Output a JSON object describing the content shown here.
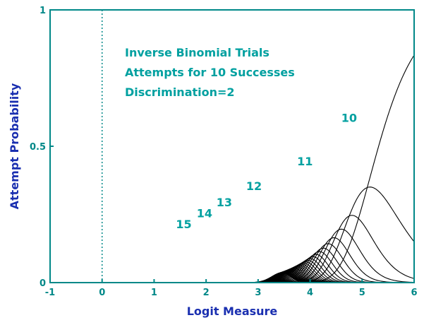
{
  "chart_data": {
    "type": "line",
    "title": "",
    "annotation_lines": [
      "Inverse Binomial Trials",
      "Attempts for 10 Successes",
      "Discrimination=2"
    ],
    "xlabel": "Logit Measure",
    "ylabel": "Attempt Probability",
    "xlim": [
      -1,
      6
    ],
    "ylim": [
      0,
      1
    ],
    "x_ticks": [
      -1,
      0,
      1,
      2,
      3,
      4,
      5,
      6
    ],
    "x_tick_labels": [
      "-1",
      "0",
      "1",
      "2",
      "3",
      "4",
      "5",
      "6"
    ],
    "y_ticks": [
      0,
      0.5,
      1
    ],
    "y_tick_labels": [
      "0",
      "0.5",
      "1"
    ],
    "reference_line_x": 0,
    "model": {
      "successes": 10,
      "discrimination": 2,
      "attempts": [
        10,
        11,
        12,
        13,
        14,
        15,
        16,
        17,
        18,
        19,
        20,
        21,
        22,
        23,
        24,
        25,
        26,
        27,
        28,
        29,
        30,
        31,
        32,
        33,
        34,
        35,
        36,
        37,
        38,
        39,
        40
      ]
    },
    "curve_labels": [
      {
        "attempts": 10,
        "text": "10",
        "x": 4.75,
        "y": 0.59
      },
      {
        "attempts": 11,
        "text": "11",
        "x": 3.9,
        "y": 0.43
      },
      {
        "attempts": 12,
        "text": "12",
        "x": 2.92,
        "y": 0.34
      },
      {
        "attempts": 13,
        "text": "13",
        "x": 2.35,
        "y": 0.28
      },
      {
        "attempts": 14,
        "text": "14",
        "x": 1.97,
        "y": 0.24
      },
      {
        "attempts": 15,
        "text": "15",
        "x": 1.57,
        "y": 0.2
      }
    ],
    "grid": false,
    "colors": {
      "curves": "#000000",
      "axes": "#008888",
      "reference_line": "#008888",
      "tick_labels": "#008888",
      "axis_titles": "#1a2fb0",
      "annotations": "#00a0a0"
    }
  }
}
